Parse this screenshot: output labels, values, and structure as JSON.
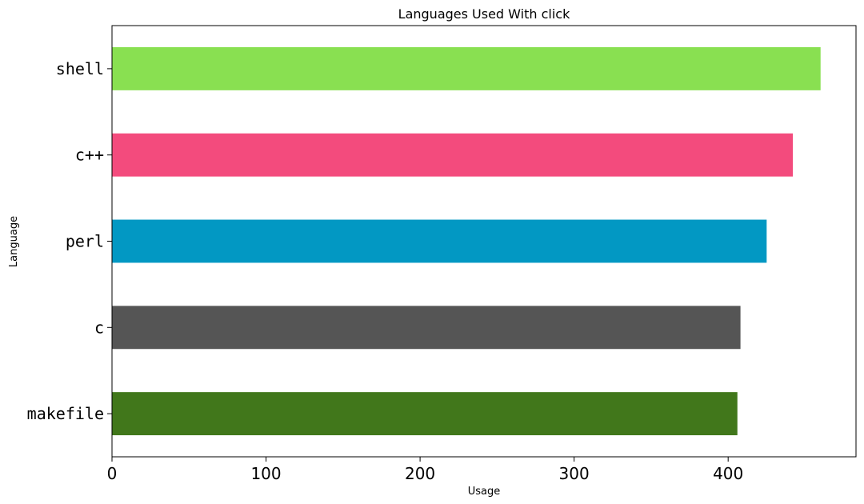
{
  "chart_data": {
    "type": "bar",
    "orientation": "horizontal",
    "title": "Languages Used With click",
    "xlabel": "Usage",
    "ylabel": "Language",
    "categories": [
      "makefile",
      "c",
      "perl",
      "c++",
      "shell"
    ],
    "values": [
      406,
      408,
      425,
      442,
      460
    ],
    "colors": [
      "#41771b",
      "#555555",
      "#0298c3",
      "#f34b7d",
      "#89e051"
    ],
    "xlim": [
      0,
      483
    ],
    "xticks": [
      0,
      100,
      200,
      300,
      400
    ],
    "grid": false,
    "legend": "none"
  }
}
